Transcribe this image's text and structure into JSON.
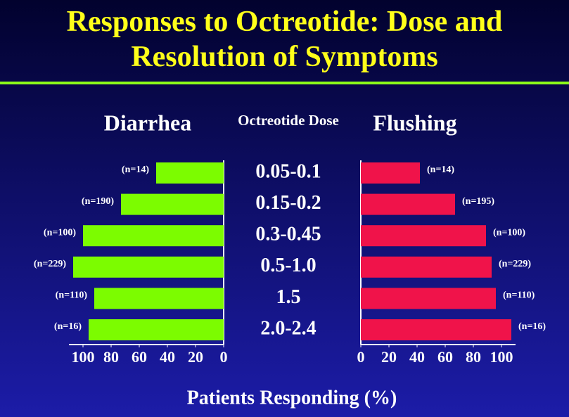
{
  "title": "Responses to Octreotide: Dose and Resolution of Symptoms",
  "center_header": "Octreotide Dose",
  "xlabel": "Patients Responding (%)",
  "chart_data": [
    {
      "type": "bar",
      "orientation": "horizontal",
      "reversed": true,
      "title": "Diarrhea",
      "categories": [
        "0.05-0.1",
        "0.15-0.2",
        "0.3-0.45",
        "0.5-1.0",
        "1.5",
        "2.0-2.4"
      ],
      "values": [
        48,
        73,
        100,
        107,
        92,
        96
      ],
      "n_labels": [
        "(n=14)",
        "(n=190)",
        "(n=100)",
        "(n=229)",
        "(n=110)",
        "(n=16)"
      ],
      "color": "#7cfc00",
      "xlim": [
        0,
        110
      ],
      "xticks": [
        0,
        20,
        40,
        60,
        80,
        100
      ]
    },
    {
      "type": "bar",
      "orientation": "horizontal",
      "reversed": false,
      "title": "Flushing",
      "values": [
        42,
        67,
        89,
        93,
        96,
        107
      ],
      "n_labels": [
        "(n=14)",
        "(n=195)",
        "(n=100)",
        "(n=229)",
        "(n=110)",
        "(n=16)"
      ],
      "color": "#f0134a",
      "xlim": [
        0,
        110
      ],
      "xticks": [
        0,
        20,
        40,
        60,
        80,
        100
      ]
    }
  ]
}
